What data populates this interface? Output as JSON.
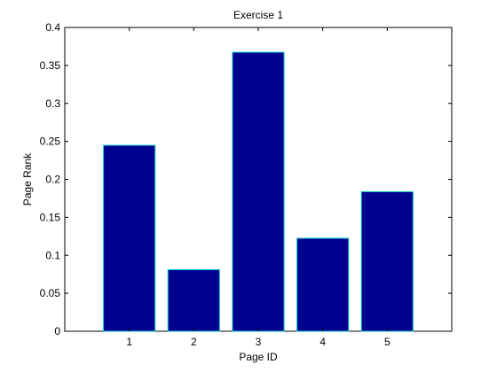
{
  "chart_data": {
    "type": "bar",
    "title": "Exercise 1",
    "xlabel": "Page ID",
    "ylabel": "Page Rank",
    "categories": [
      "1",
      "2",
      "3",
      "4",
      "5"
    ],
    "values": [
      0.2448,
      0.081,
      0.3673,
      0.1224,
      0.1837
    ],
    "ylim": [
      0,
      0.4
    ],
    "yticks": [
      0,
      0.05,
      0.1,
      0.15,
      0.2,
      0.25,
      0.3,
      0.35,
      0.4
    ],
    "ytick_labels": [
      "0",
      "0.05",
      "0.1",
      "0.15",
      "0.2",
      "0.25",
      "0.3",
      "0.35",
      "0.4"
    ],
    "grid": false,
    "bar_color": "#00008f",
    "bar_edge_color": "#00c8c8"
  }
}
